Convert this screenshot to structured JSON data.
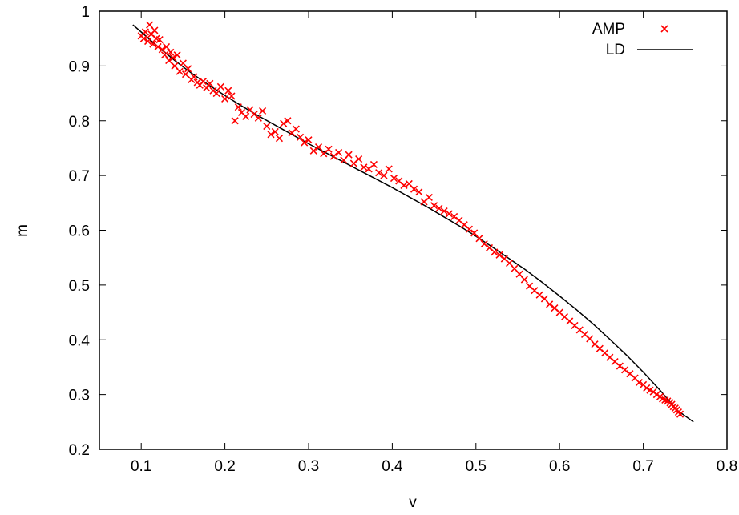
{
  "chart_data": {
    "type": "scatter",
    "xlabel": "v",
    "ylabel": "m",
    "xlim": [
      0.05,
      0.8
    ],
    "ylim": [
      0.2,
      1.0
    ],
    "xticks": [
      "0.1",
      "0.2",
      "0.3",
      "0.4",
      "0.5",
      "0.6",
      "0.7",
      "0.8"
    ],
    "yticks": [
      "0.2",
      "0.3",
      "0.4",
      "0.5",
      "0.6",
      "0.7",
      "0.8",
      "0.9",
      "1"
    ],
    "grid": false,
    "legend_position": "top-right",
    "series": [
      {
        "name": "AMP",
        "kind": "scatter",
        "marker": "x",
        "color": "#ff0000",
        "x": [
          0.1,
          0.103,
          0.105,
          0.108,
          0.11,
          0.112,
          0.114,
          0.116,
          0.118,
          0.12,
          0.122,
          0.125,
          0.128,
          0.13,
          0.133,
          0.135,
          0.138,
          0.14,
          0.143,
          0.146,
          0.15,
          0.153,
          0.156,
          0.16,
          0.163,
          0.167,
          0.17,
          0.174,
          0.178,
          0.182,
          0.186,
          0.19,
          0.195,
          0.2,
          0.204,
          0.208,
          0.212,
          0.216,
          0.22,
          0.225,
          0.23,
          0.235,
          0.24,
          0.245,
          0.25,
          0.255,
          0.26,
          0.265,
          0.27,
          0.275,
          0.28,
          0.285,
          0.29,
          0.295,
          0.3,
          0.306,
          0.312,
          0.318,
          0.324,
          0.33,
          0.336,
          0.342,
          0.348,
          0.354,
          0.36,
          0.366,
          0.372,
          0.378,
          0.384,
          0.39,
          0.396,
          0.402,
          0.408,
          0.414,
          0.42,
          0.426,
          0.432,
          0.438,
          0.444,
          0.45,
          0.456,
          0.462,
          0.468,
          0.474,
          0.48,
          0.486,
          0.492,
          0.498,
          0.504,
          0.51,
          0.516,
          0.522,
          0.528,
          0.534,
          0.54,
          0.546,
          0.552,
          0.558,
          0.564,
          0.57,
          0.576,
          0.582,
          0.588,
          0.594,
          0.6,
          0.606,
          0.612,
          0.618,
          0.624,
          0.63,
          0.636,
          0.642,
          0.648,
          0.654,
          0.66,
          0.666,
          0.672,
          0.678,
          0.684,
          0.69,
          0.695,
          0.7,
          0.704,
          0.708,
          0.712,
          0.716,
          0.72,
          0.723,
          0.726,
          0.729,
          0.732,
          0.734,
          0.736,
          0.738,
          0.74,
          0.742,
          0.744
        ],
        "y": [
          0.955,
          0.95,
          0.962,
          0.945,
          0.975,
          0.958,
          0.94,
          0.965,
          0.95,
          0.935,
          0.948,
          0.93,
          0.92,
          0.935,
          0.91,
          0.925,
          0.915,
          0.9,
          0.92,
          0.89,
          0.905,
          0.885,
          0.895,
          0.875,
          0.88,
          0.87,
          0.865,
          0.872,
          0.86,
          0.868,
          0.855,
          0.85,
          0.862,
          0.84,
          0.855,
          0.845,
          0.8,
          0.825,
          0.815,
          0.808,
          0.82,
          0.812,
          0.805,
          0.818,
          0.79,
          0.775,
          0.78,
          0.768,
          0.795,
          0.8,
          0.778,
          0.785,
          0.77,
          0.76,
          0.765,
          0.745,
          0.752,
          0.74,
          0.748,
          0.735,
          0.742,
          0.728,
          0.738,
          0.722,
          0.73,
          0.715,
          0.712,
          0.72,
          0.705,
          0.7,
          0.712,
          0.695,
          0.69,
          0.682,
          0.685,
          0.675,
          0.67,
          0.652,
          0.66,
          0.645,
          0.64,
          0.635,
          0.63,
          0.625,
          0.618,
          0.61,
          0.602,
          0.595,
          0.585,
          0.575,
          0.568,
          0.56,
          0.555,
          0.548,
          0.54,
          0.53,
          0.52,
          0.51,
          0.498,
          0.49,
          0.482,
          0.475,
          0.465,
          0.458,
          0.45,
          0.442,
          0.434,
          0.426,
          0.418,
          0.41,
          0.402,
          0.392,
          0.384,
          0.376,
          0.368,
          0.36,
          0.352,
          0.345,
          0.338,
          0.33,
          0.322,
          0.318,
          0.312,
          0.308,
          0.305,
          0.3,
          0.296,
          0.292,
          0.29,
          0.288,
          0.285,
          0.282,
          0.278,
          0.275,
          0.272,
          0.268,
          0.264
        ]
      },
      {
        "name": "LD",
        "kind": "line",
        "color": "#000000",
        "x": [
          0.09,
          0.1,
          0.12,
          0.14,
          0.16,
          0.18,
          0.2,
          0.22,
          0.24,
          0.26,
          0.28,
          0.3,
          0.32,
          0.34,
          0.36,
          0.38,
          0.4,
          0.42,
          0.44,
          0.46,
          0.48,
          0.5,
          0.52,
          0.54,
          0.56,
          0.58,
          0.6,
          0.62,
          0.64,
          0.66,
          0.68,
          0.7,
          0.72,
          0.74,
          0.76
        ],
        "y": [
          0.975,
          0.962,
          0.935,
          0.91,
          0.887,
          0.866,
          0.846,
          0.827,
          0.809,
          0.792,
          0.775,
          0.758,
          0.742,
          0.726,
          0.71,
          0.694,
          0.678,
          0.661,
          0.644,
          0.626,
          0.608,
          0.589,
          0.569,
          0.548,
          0.527,
          0.504,
          0.48,
          0.455,
          0.429,
          0.401,
          0.372,
          0.341,
          0.308,
          0.272,
          0.25
        ]
      }
    ]
  }
}
